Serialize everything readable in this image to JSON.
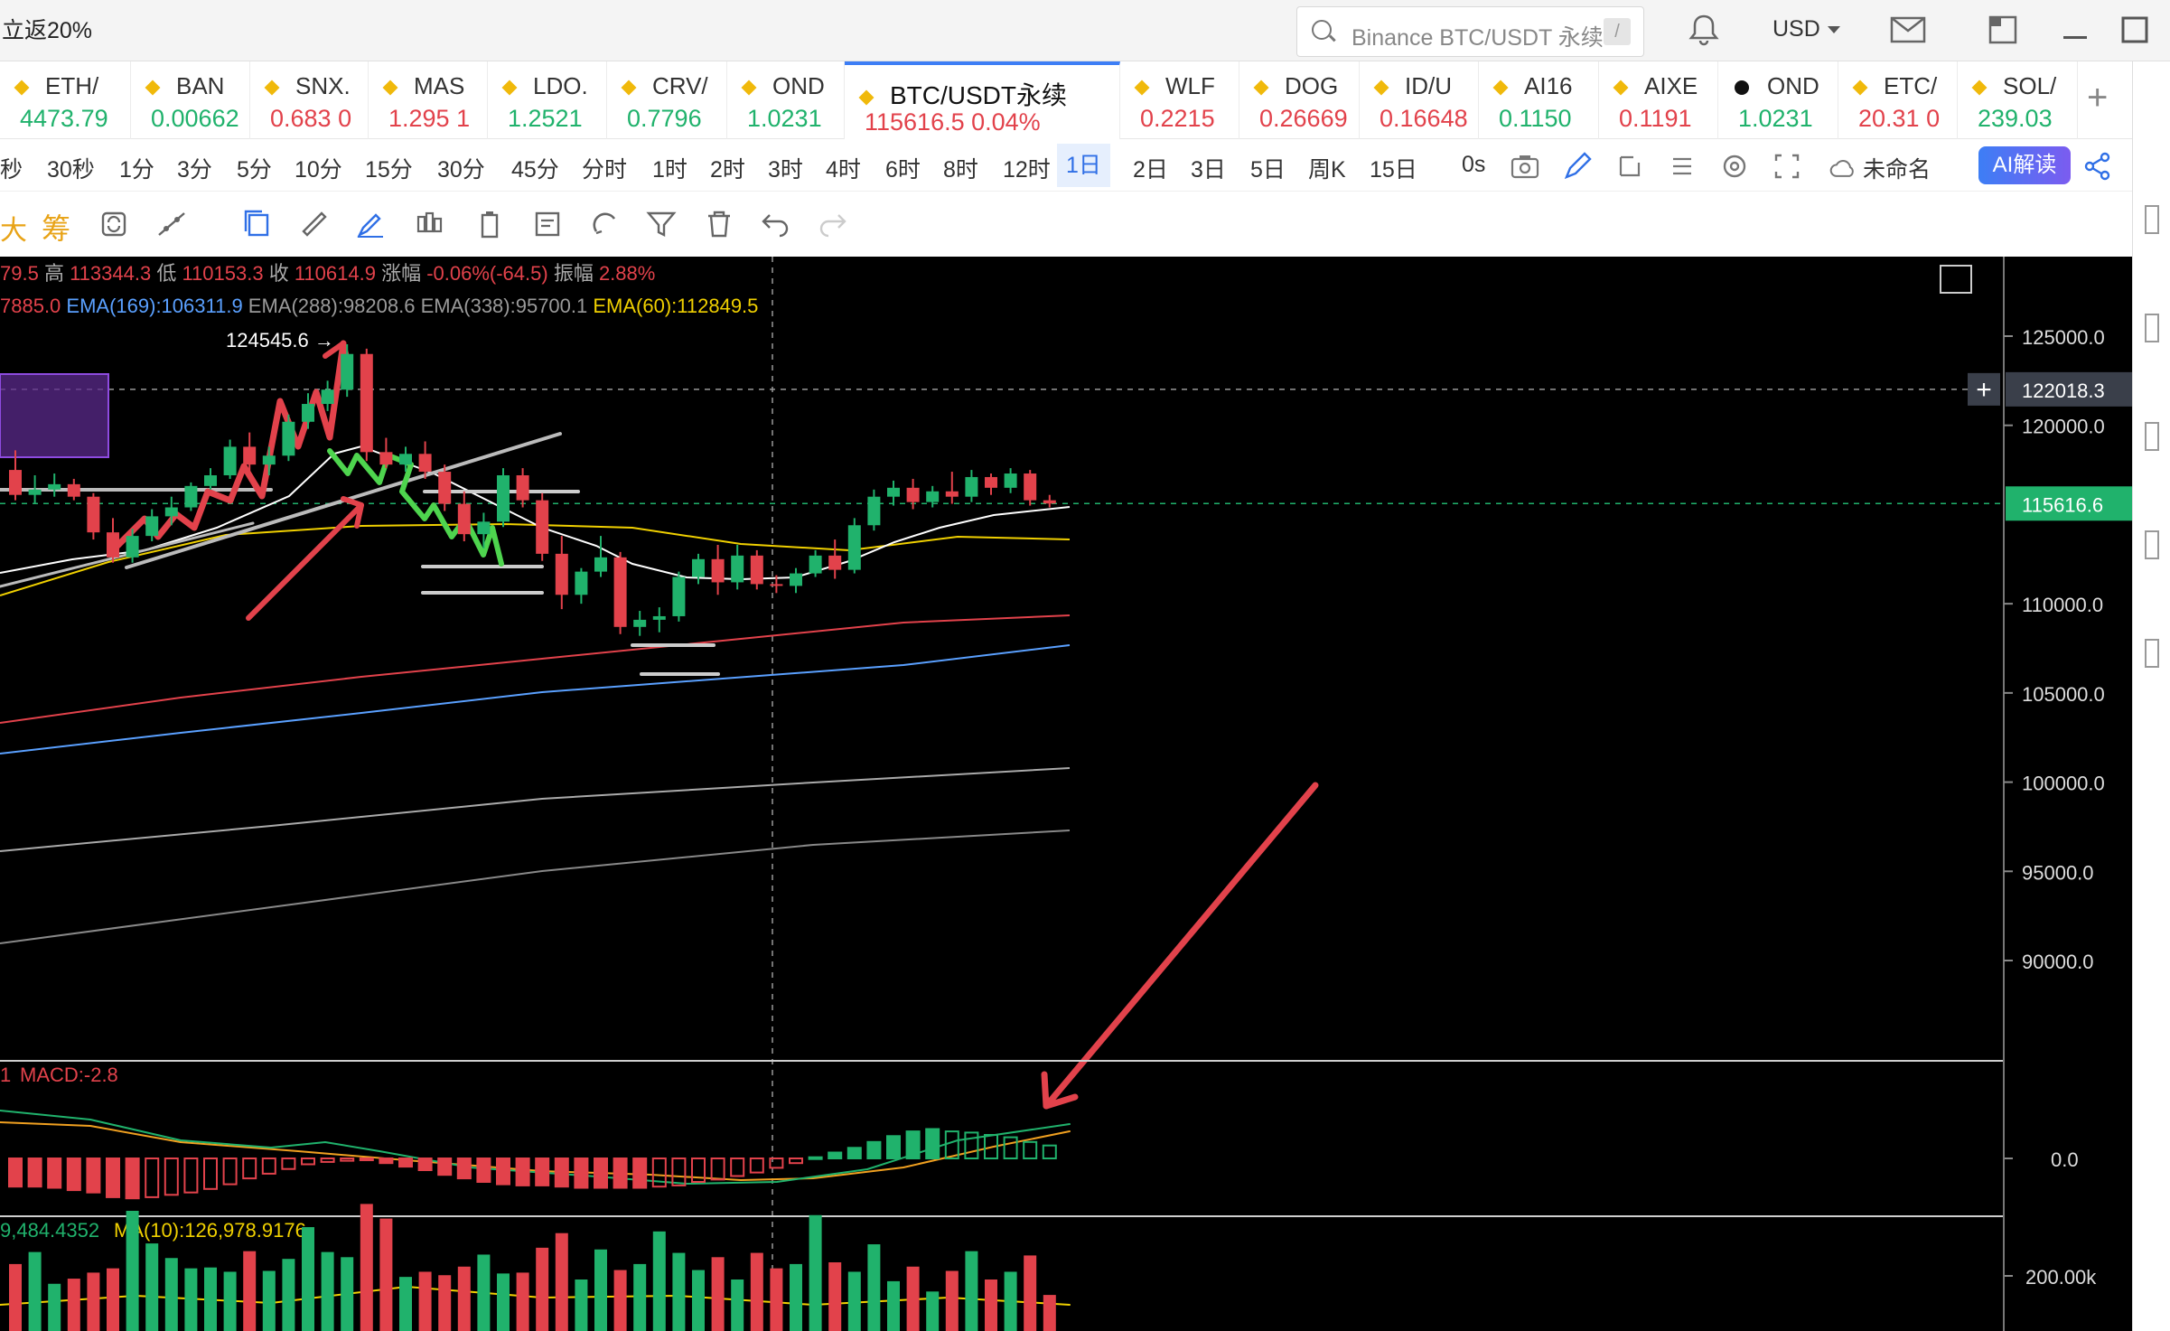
{
  "top": {
    "promo": "立返20%",
    "search_placeholder": "Binance BTC/USDT 永续",
    "search_shortcut": "/",
    "currency": "USD"
  },
  "tickers": [
    {
      "name": "ETH/",
      "price": "4473.79",
      "dir": "up"
    },
    {
      "name": "BAN",
      "price": "0.00662",
      "dir": "up"
    },
    {
      "name": "SNX.",
      "price": "0.683 0",
      "dir": "dn"
    },
    {
      "name": "MAS",
      "price": "1.295 1",
      "dir": "dn"
    },
    {
      "name": "LDO.",
      "price": "1.2521",
      "dir": "up"
    },
    {
      "name": "CRV/",
      "price": "0.7796",
      "dir": "up"
    },
    {
      "name": "OND",
      "price": "1.0231",
      "dir": "up"
    },
    {
      "name": "BTC/USDT永续",
      "price": "115616.5 0.04%",
      "dir": "dn",
      "active": true
    },
    {
      "name": "WLF",
      "price": "0.2215",
      "dir": "dn"
    },
    {
      "name": "DOG",
      "price": "0.26669",
      "dir": "dn"
    },
    {
      "name": "ID/U",
      "price": "0.16648",
      "dir": "dn"
    },
    {
      "name": "AI16",
      "price": "0.1150",
      "dir": "up"
    },
    {
      "name": "AIXE",
      "price": "0.1191",
      "dir": "dn"
    },
    {
      "name": "OND",
      "price": "1.0231",
      "dir": "up",
      "dark": true
    },
    {
      "name": "ETC/",
      "price": "20.31 0",
      "dir": "dn"
    },
    {
      "name": "SOL/",
      "price": "239.03",
      "dir": "up"
    }
  ],
  "intervals": [
    "秒",
    "30秒",
    "1分",
    "3分",
    "5分",
    "10分",
    "15分",
    "30分",
    "45分",
    "分时",
    "1时",
    "2时",
    "3时",
    "4时",
    "6时",
    "8时",
    "12时",
    "1日",
    "2日",
    "3日",
    "5日",
    "周K",
    "15日"
  ],
  "selected_interval": "1日",
  "countdown": "0s",
  "layout_name": "未命名",
  "ai_button": "AI解读",
  "tool_chou": "筹",
  "tool_da": "大",
  "chart": {
    "info_ohlc": [
      {
        "t": "79.5 ",
        "c": "#e2424b"
      },
      {
        "t": "高 ",
        "c": "#aaaaaa"
      },
      {
        "t": "113344.3 ",
        "c": "#e2424b"
      },
      {
        "t": "低 ",
        "c": "#aaaaaa"
      },
      {
        "t": "110153.3 ",
        "c": "#e2424b"
      },
      {
        "t": "收 ",
        "c": "#aaaaaa"
      },
      {
        "t": "110614.9 ",
        "c": "#e2424b"
      },
      {
        "t": "涨幅 ",
        "c": "#aaaaaa"
      },
      {
        "t": "-0.06%(-64.5) ",
        "c": "#e2424b"
      },
      {
        "t": "振幅 ",
        "c": "#aaaaaa"
      },
      {
        "t": "2.88%",
        "c": "#e2424b"
      }
    ],
    "info_ema": [
      {
        "t": "7885.0 ",
        "c": "#e2424b"
      },
      {
        "t": "EMA(169):106311.9 ",
        "c": "#5aa0ff"
      },
      {
        "t": "EMA(288):98208.6 ",
        "c": "#9a9a9a"
      },
      {
        "t": "EMA(338):95700.1 ",
        "c": "#9a9a9a"
      },
      {
        "t": "EMA(60):112849.5",
        "c": "#f0d000"
      }
    ],
    "high_marker": "124545.6",
    "price_axis": [
      "125000.0",
      "120000.0",
      "110000.0",
      "105000.0",
      "100000.0",
      "95000.0",
      "90000.0"
    ],
    "crosshair_price": "122018.3",
    "last_price": "115616.6",
    "macd_label_prefix": "1",
    "macd_label": "MACD:-2.8",
    "macd_axis": "0.0",
    "vol_label_a": "9,484.4352",
    "vol_label_b": "MA(10):126,978.9176",
    "vol_axis": "200.00k",
    "colors": {
      "up": "#20b26c",
      "down": "#e2424b",
      "ema_white": "#ffffff",
      "ema_yellow": "#f0d000",
      "ema_red": "#e2424b",
      "ema_blue": "#5aa0ff",
      "ema_grey": "#9a9a9a",
      "accent": "#3d7ef5"
    }
  },
  "chart_data": {
    "type": "candlestick",
    "title": "BTC/USDT永续",
    "interval": "1日",
    "y_ticks": [
      125000,
      120000,
      110000,
      105000,
      100000,
      95000,
      90000
    ],
    "ylim": [
      86000,
      128000
    ],
    "candles": [
      [
        117500,
        118600,
        115800,
        116100
      ],
      [
        116100,
        117200,
        115600,
        116400
      ],
      [
        116400,
        117300,
        116000,
        116700
      ],
      [
        116700,
        117000,
        115800,
        116000
      ],
      [
        116000,
        116200,
        113600,
        114000
      ],
      [
        114000,
        114800,
        112300,
        112600
      ],
      [
        112600,
        114200,
        112300,
        113800
      ],
      [
        113800,
        115300,
        113500,
        114900
      ],
      [
        114900,
        116000,
        114400,
        115400
      ],
      [
        115400,
        116800,
        115200,
        116600
      ],
      [
        116600,
        117600,
        116400,
        117200
      ],
      [
        117200,
        119200,
        117000,
        118800
      ],
      [
        118800,
        119600,
        117200,
        117800
      ],
      [
        117800,
        118800,
        117200,
        118300
      ],
      [
        118300,
        120600,
        118000,
        120200
      ],
      [
        120200,
        121800,
        119800,
        121200
      ],
      [
        121200,
        122500,
        120800,
        122000
      ],
      [
        122000,
        124545.6,
        121600,
        124000
      ],
      [
        124000,
        124300,
        118000,
        118500
      ],
      [
        118500,
        119300,
        117600,
        117800
      ],
      [
        117800,
        118800,
        117400,
        118400
      ],
      [
        118400,
        119100,
        117000,
        117400
      ],
      [
        117400,
        117800,
        115200,
        115600
      ],
      [
        115600,
        116300,
        113500,
        113900
      ],
      [
        113900,
        115100,
        113100,
        114600
      ],
      [
        114600,
        117600,
        114300,
        117200
      ],
      [
        117200,
        117600,
        115400,
        115800
      ],
      [
        115800,
        116200,
        112400,
        112800
      ],
      [
        112800,
        113800,
        109700,
        110500
      ],
      [
        110500,
        112000,
        110000,
        111800
      ],
      [
        111800,
        113800,
        111500,
        112600
      ],
      [
        112600,
        112900,
        108300,
        108700
      ],
      [
        108700,
        109600,
        108200,
        109100
      ],
      [
        109100,
        109800,
        108400,
        109300
      ],
      [
        109300,
        111800,
        109000,
        111500
      ],
      [
        111500,
        112800,
        111100,
        112500
      ],
      [
        112500,
        113300,
        110500,
        111200
      ],
      [
        111200,
        113300,
        110800,
        112700
      ],
      [
        112700,
        113000,
        110800,
        111100
      ],
      [
        111100,
        111600,
        110600,
        111000
      ],
      [
        111000,
        112000,
        110600,
        111700
      ],
      [
        111700,
        113000,
        111500,
        112700
      ],
      [
        112700,
        113600,
        111400,
        111900
      ],
      [
        111900,
        114800,
        111700,
        114400
      ],
      [
        114400,
        116400,
        114100,
        116000
      ],
      [
        116000,
        116900,
        115500,
        116500
      ],
      [
        116500,
        117000,
        115300,
        115700
      ],
      [
        115700,
        116600,
        115400,
        116300
      ],
      [
        116300,
        117400,
        115600,
        116000
      ],
      [
        116000,
        117500,
        115700,
        117100
      ],
      [
        117100,
        117300,
        116100,
        116500
      ],
      [
        116500,
        117600,
        116200,
        117300
      ],
      [
        117300,
        117500,
        115500,
        115800
      ],
      [
        115800,
        116100,
        115400,
        115616.6
      ]
    ],
    "macd_hist": [
      -24,
      -24,
      -25,
      -27,
      -29,
      -33,
      -34,
      -33,
      -31,
      -29,
      -26,
      -22,
      -17,
      -13,
      -9,
      -5,
      -3,
      -2,
      -1,
      -4,
      -7,
      -10,
      -14,
      -17,
      -20,
      -22,
      -23,
      -23,
      -24,
      -25,
      -25,
      -25,
      -25,
      -24,
      -23,
      -20,
      -18,
      -15,
      -12,
      -8,
      -4,
      1,
      5,
      9,
      14,
      19,
      23,
      25,
      23,
      22,
      20,
      18,
      14,
      11
    ],
    "volume": [
      78,
      92,
      55,
      61,
      68,
      73,
      140,
      102,
      85,
      73,
      74,
      69,
      93,
      70,
      84,
      121,
      92,
      86,
      148,
      131,
      63,
      69,
      65,
      75,
      89,
      67,
      68,
      97,
      114,
      60,
      95,
      71,
      78,
      116,
      91,
      71,
      86,
      60,
      91,
      73,
      78,
      135,
      80,
      69,
      101,
      58,
      75,
      46,
      70,
      93,
      60,
      69,
      88,
      42
    ]
  }
}
